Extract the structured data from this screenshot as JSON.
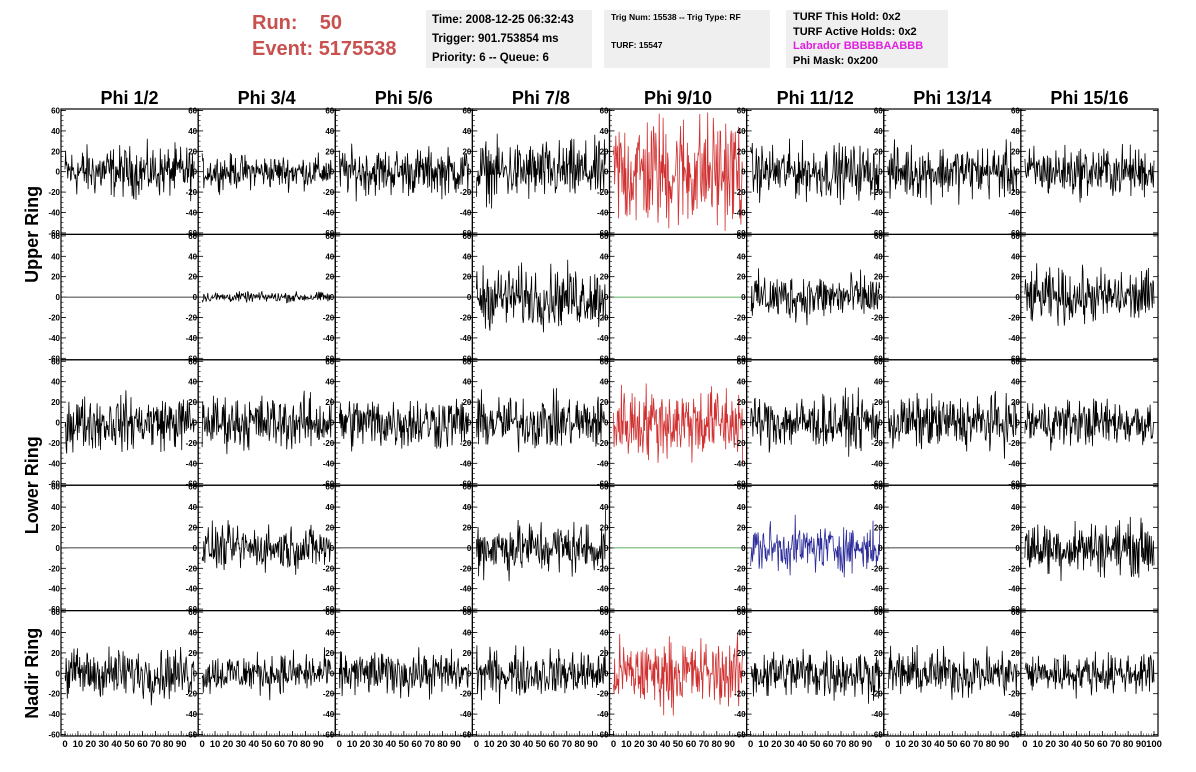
{
  "header": {
    "run_label": "Run:",
    "run_value": "50",
    "event_label": "Event:",
    "event_value": "5175538"
  },
  "info_panel": {
    "time": "Time: 2008-12-25 06:32:43",
    "trigger": "Trigger: 901.753854 ms",
    "priority": "Priority: 6 -- Queue: 6"
  },
  "trig_panel": {
    "trig_line": "Trig Num: 15538 -- Trig Type: RF",
    "turf_line": "TURF: 15547"
  },
  "turf_panel": {
    "this_hold": "TURF This Hold: 0x2",
    "active_holds": "TURF Active Holds: 0x2",
    "labrador": "Labrador BBBBBAABBB",
    "phi_mask": "Phi Mask: 0x200"
  },
  "chart_data": {
    "type": "line",
    "title": "",
    "columns": [
      "Phi 1/2",
      "Phi 3/4",
      "Phi 5/6",
      "Phi 7/8",
      "Phi 9/10",
      "Phi 11/12",
      "Phi 13/14",
      "Phi 15/16"
    ],
    "row_groups": [
      "Upper Ring",
      "Lower Ring",
      "Nadir Ring"
    ],
    "ylim": [
      -60,
      60
    ],
    "xlim": [
      0,
      100
    ],
    "ytick_labels": [
      "60",
      "40",
      "20",
      "0",
      "-20",
      "-40",
      "-60"
    ],
    "xtick_labels": [
      "0",
      "10",
      "20",
      "30",
      "40",
      "50",
      "60",
      "70",
      "80",
      "90",
      "100"
    ],
    "colors": {
      "normal": "#000000",
      "triggered": "#d03030",
      "masked": "#2a2a9a",
      "dead": "#2a9a2a"
    },
    "rows": [
      {
        "name": "Upper Ring 1",
        "cells": [
          {
            "amp": 15,
            "color": "normal"
          },
          {
            "amp": 10,
            "color": "normal"
          },
          {
            "amp": 14,
            "color": "normal"
          },
          {
            "amp": 18,
            "color": "normal"
          },
          {
            "amp": 35,
            "color": "triggered"
          },
          {
            "amp": 16,
            "color": "normal"
          },
          {
            "amp": 16,
            "color": "normal"
          },
          {
            "amp": 15,
            "color": "normal"
          }
        ]
      },
      {
        "name": "Upper Ring 2",
        "cells": [
          {
            "amp": 0,
            "color": "normal"
          },
          {
            "amp": 3,
            "color": "normal"
          },
          {
            "amp": 0,
            "color": "normal"
          },
          {
            "amp": 18,
            "color": "normal"
          },
          {
            "amp": 0,
            "color": "dead"
          },
          {
            "amp": 14,
            "color": "normal"
          },
          {
            "amp": 0,
            "color": "normal"
          },
          {
            "amp": 16,
            "color": "normal"
          }
        ]
      },
      {
        "name": "Lower Ring 1",
        "cells": [
          {
            "amp": 16,
            "color": "normal"
          },
          {
            "amp": 16,
            "color": "normal"
          },
          {
            "amp": 16,
            "color": "normal"
          },
          {
            "amp": 16,
            "color": "normal"
          },
          {
            "amp": 22,
            "color": "triggered"
          },
          {
            "amp": 16,
            "color": "normal"
          },
          {
            "amp": 16,
            "color": "normal"
          },
          {
            "amp": 14,
            "color": "normal"
          }
        ]
      },
      {
        "name": "Lower Ring 2",
        "cells": [
          {
            "amp": 0,
            "color": "normal"
          },
          {
            "amp": 13,
            "color": "normal"
          },
          {
            "amp": 0,
            "color": "normal"
          },
          {
            "amp": 16,
            "color": "normal"
          },
          {
            "amp": 0,
            "color": "dead"
          },
          {
            "amp": 14,
            "color": "masked"
          },
          {
            "amp": 0,
            "color": "normal"
          },
          {
            "amp": 16,
            "color": "normal"
          }
        ]
      },
      {
        "name": "Nadir Ring",
        "cells": [
          {
            "amp": 15,
            "color": "normal"
          },
          {
            "amp": 12,
            "color": "normal"
          },
          {
            "amp": 13,
            "color": "normal"
          },
          {
            "amp": 14,
            "color": "normal"
          },
          {
            "amp": 20,
            "color": "triggered"
          },
          {
            "amp": 15,
            "color": "normal"
          },
          {
            "amp": 14,
            "color": "normal"
          },
          {
            "amp": 12,
            "color": "normal"
          }
        ]
      }
    ]
  }
}
